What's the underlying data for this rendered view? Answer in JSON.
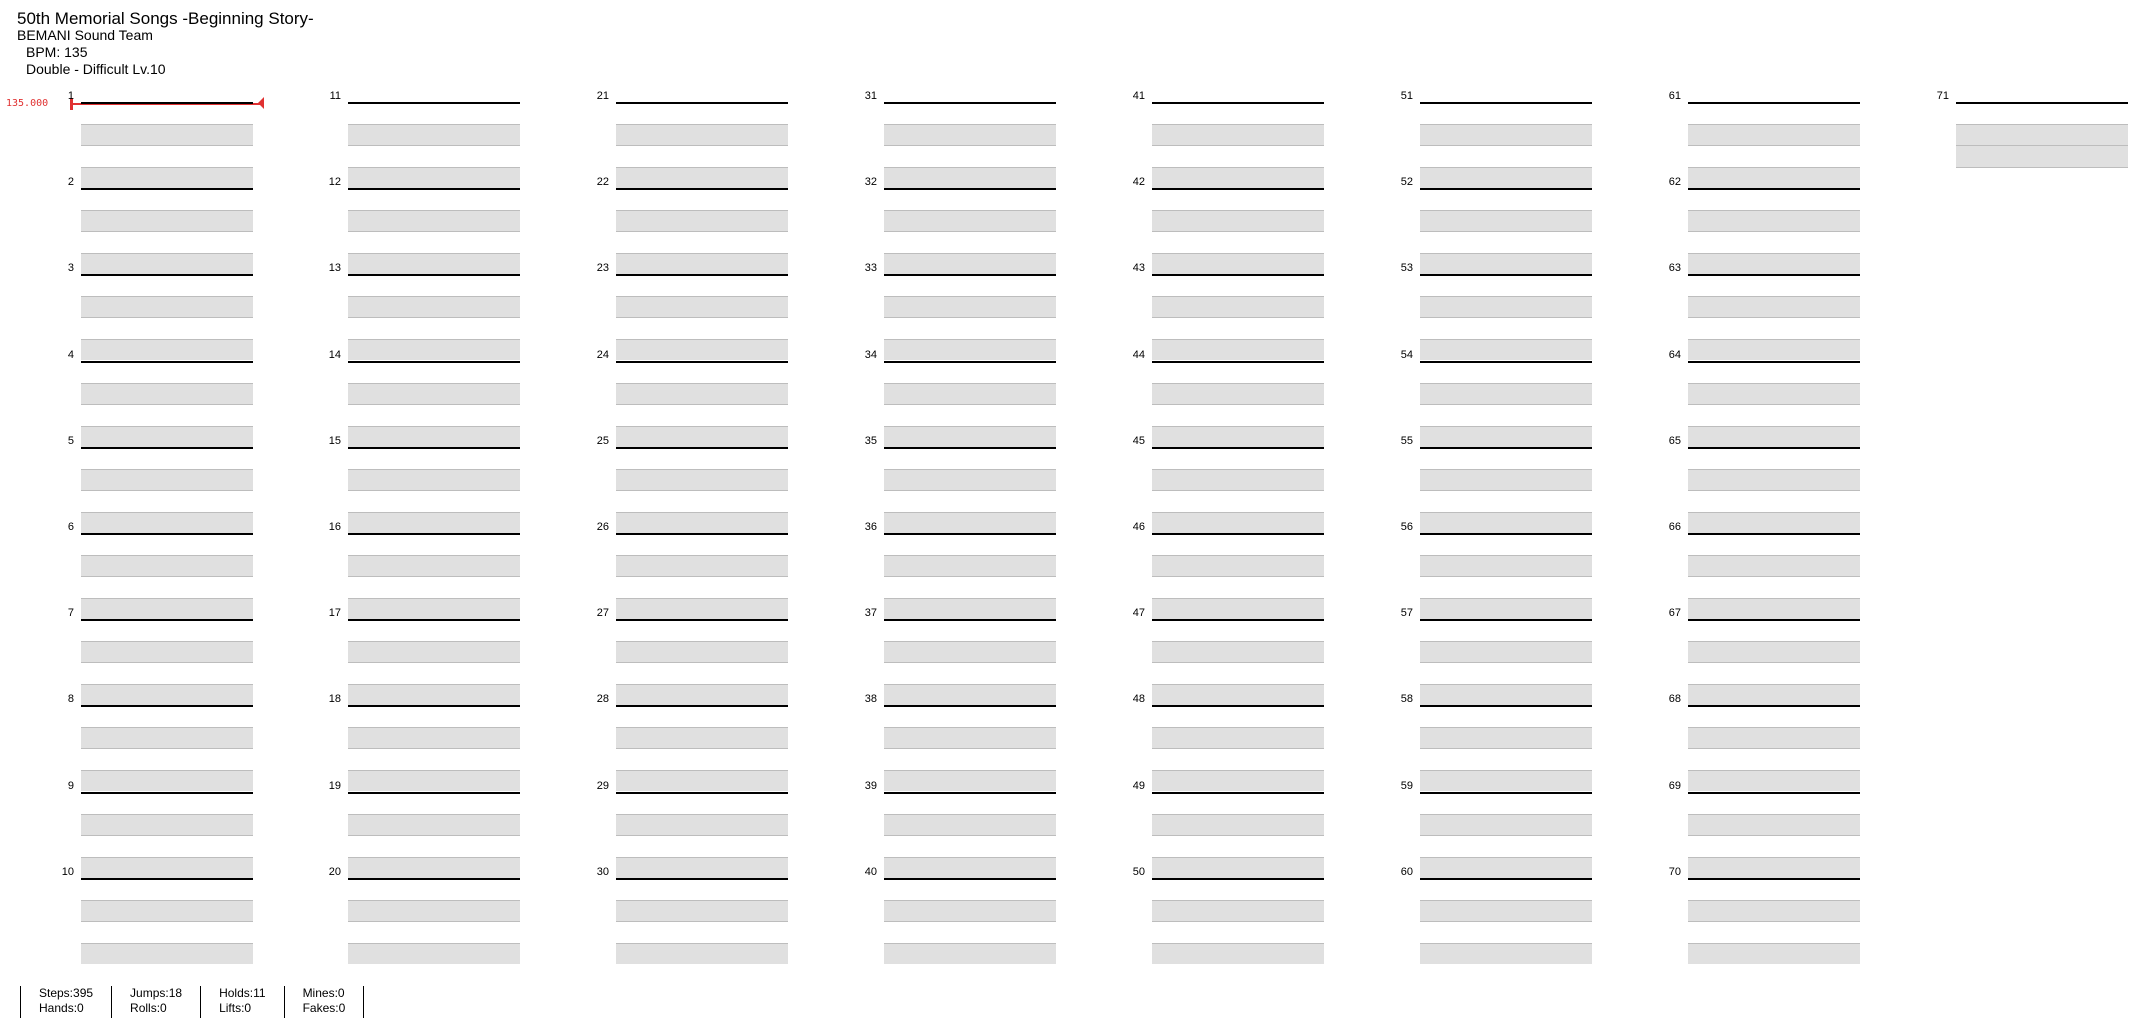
{
  "header": {
    "title": "50th Memorial Songs -Beginning Story-",
    "artist": "BEMANI Sound Team",
    "bpm": "BPM: 135",
    "difficulty": "Double - Difficult Lv.10"
  },
  "bpm_marker": "135.000",
  "measures": [
    "1",
    "2",
    "3",
    "4",
    "5",
    "6",
    "7",
    "8",
    "9",
    "10",
    "11",
    "12",
    "13",
    "14",
    "15",
    "16",
    "17",
    "18",
    "19",
    "20",
    "21",
    "22",
    "23",
    "24",
    "25",
    "26",
    "27",
    "28",
    "29",
    "30",
    "31",
    "32",
    "33",
    "34",
    "35",
    "36",
    "37",
    "38",
    "39",
    "40",
    "41",
    "42",
    "43",
    "44",
    "45",
    "46",
    "47",
    "48",
    "49",
    "50",
    "51",
    "52",
    "53",
    "54",
    "55",
    "56",
    "57",
    "58",
    "59",
    "60",
    "61",
    "62",
    "63",
    "64",
    "65",
    "66",
    "67",
    "68",
    "69",
    "70",
    "71"
  ],
  "stats": {
    "steps": "Steps:395",
    "hands": "Hands:0",
    "jumps": "Jumps:18",
    "rolls": "Rolls:0",
    "holds": "Holds:11",
    "lifts": "Lifts:0",
    "mines": "Mines:0",
    "fakes": "Fakes:0"
  },
  "colors": {
    "lane_band": "#e0e0e0",
    "measure_line": "#000000",
    "bpm_marker": "#e03131"
  }
}
